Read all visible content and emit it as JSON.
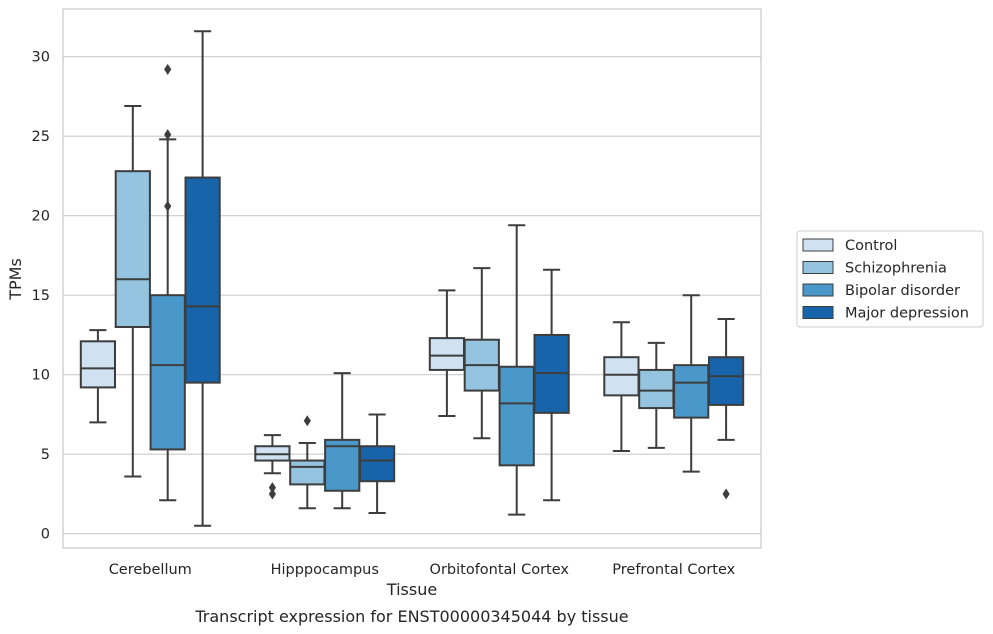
{
  "chart_data": {
    "type": "box",
    "title": "Transcript expression for ENST00000345044 by tissue",
    "xlabel": "Tissue",
    "ylabel": "TPMs",
    "ylim": [
      -0.9,
      33.0
    ],
    "yticks": [
      "0",
      "5",
      "10",
      "15",
      "20",
      "25",
      "30"
    ],
    "grid": "horizontal",
    "legend_position": "right",
    "categories": [
      "Cerebellum",
      "Hipppocampus",
      "Orbitofontal Cortex",
      "Prefrontal Cortex"
    ],
    "series": [
      {
        "name": "Control",
        "color": "#d0e1f2",
        "boxes": [
          {
            "whisker_low": 7.0,
            "q1": 9.2,
            "median": 10.4,
            "q3": 12.1,
            "whisker_high": 12.8,
            "outliers": []
          },
          {
            "whisker_low": 3.8,
            "q1": 4.6,
            "median": 5.0,
            "q3": 5.5,
            "whisker_high": 6.2,
            "outliers": [
              2.5,
              2.9
            ]
          },
          {
            "whisker_low": 7.4,
            "q1": 10.3,
            "median": 11.2,
            "q3": 12.3,
            "whisker_high": 15.3,
            "outliers": []
          },
          {
            "whisker_low": 5.2,
            "q1": 8.7,
            "median": 10.0,
            "q3": 11.1,
            "whisker_high": 13.3,
            "outliers": []
          }
        ]
      },
      {
        "name": "Schizophrenia",
        "color": "#94c4df",
        "boxes": [
          {
            "whisker_low": 3.6,
            "q1": 13.0,
            "median": 16.0,
            "q3": 22.8,
            "whisker_high": 26.9,
            "outliers": []
          },
          {
            "whisker_low": 1.6,
            "q1": 3.1,
            "median": 4.2,
            "q3": 4.6,
            "whisker_high": 5.7,
            "outliers": [
              7.1
            ]
          },
          {
            "whisker_low": 6.0,
            "q1": 9.0,
            "median": 10.6,
            "q3": 12.2,
            "whisker_high": 16.7,
            "outliers": []
          },
          {
            "whisker_low": 5.4,
            "q1": 7.9,
            "median": 9.0,
            "q3": 10.3,
            "whisker_high": 12.0,
            "outliers": []
          }
        ]
      },
      {
        "name": "Bipolar disorder",
        "color": "#4a98c9",
        "boxes": [
          {
            "whisker_low": 2.1,
            "q1": 5.3,
            "median": 10.6,
            "q3": 15.0,
            "whisker_high": 24.8,
            "outliers": [
              20.6,
              25.1,
              29.2
            ]
          },
          {
            "whisker_low": 1.6,
            "q1": 2.7,
            "median": 5.5,
            "q3": 5.9,
            "whisker_high": 10.1,
            "outliers": []
          },
          {
            "whisker_low": 1.2,
            "q1": 4.3,
            "median": 8.2,
            "q3": 10.5,
            "whisker_high": 19.4,
            "outliers": []
          },
          {
            "whisker_low": 3.9,
            "q1": 7.3,
            "median": 9.5,
            "q3": 10.6,
            "whisker_high": 15.0,
            "outliers": []
          }
        ]
      },
      {
        "name": "Major depression",
        "color": "#1764ab",
        "boxes": [
          {
            "whisker_low": 0.5,
            "q1": 9.5,
            "median": 14.3,
            "q3": 22.4,
            "whisker_high": 31.6,
            "outliers": []
          },
          {
            "whisker_low": 1.3,
            "q1": 3.3,
            "median": 4.6,
            "q3": 5.5,
            "whisker_high": 7.5,
            "outliers": []
          },
          {
            "whisker_low": 2.1,
            "q1": 7.6,
            "median": 10.1,
            "q3": 12.5,
            "whisker_high": 16.6,
            "outliers": []
          },
          {
            "whisker_low": 5.9,
            "q1": 8.1,
            "median": 9.9,
            "q3": 11.1,
            "whisker_high": 13.5,
            "outliers": [
              2.5
            ]
          }
        ]
      }
    ]
  }
}
